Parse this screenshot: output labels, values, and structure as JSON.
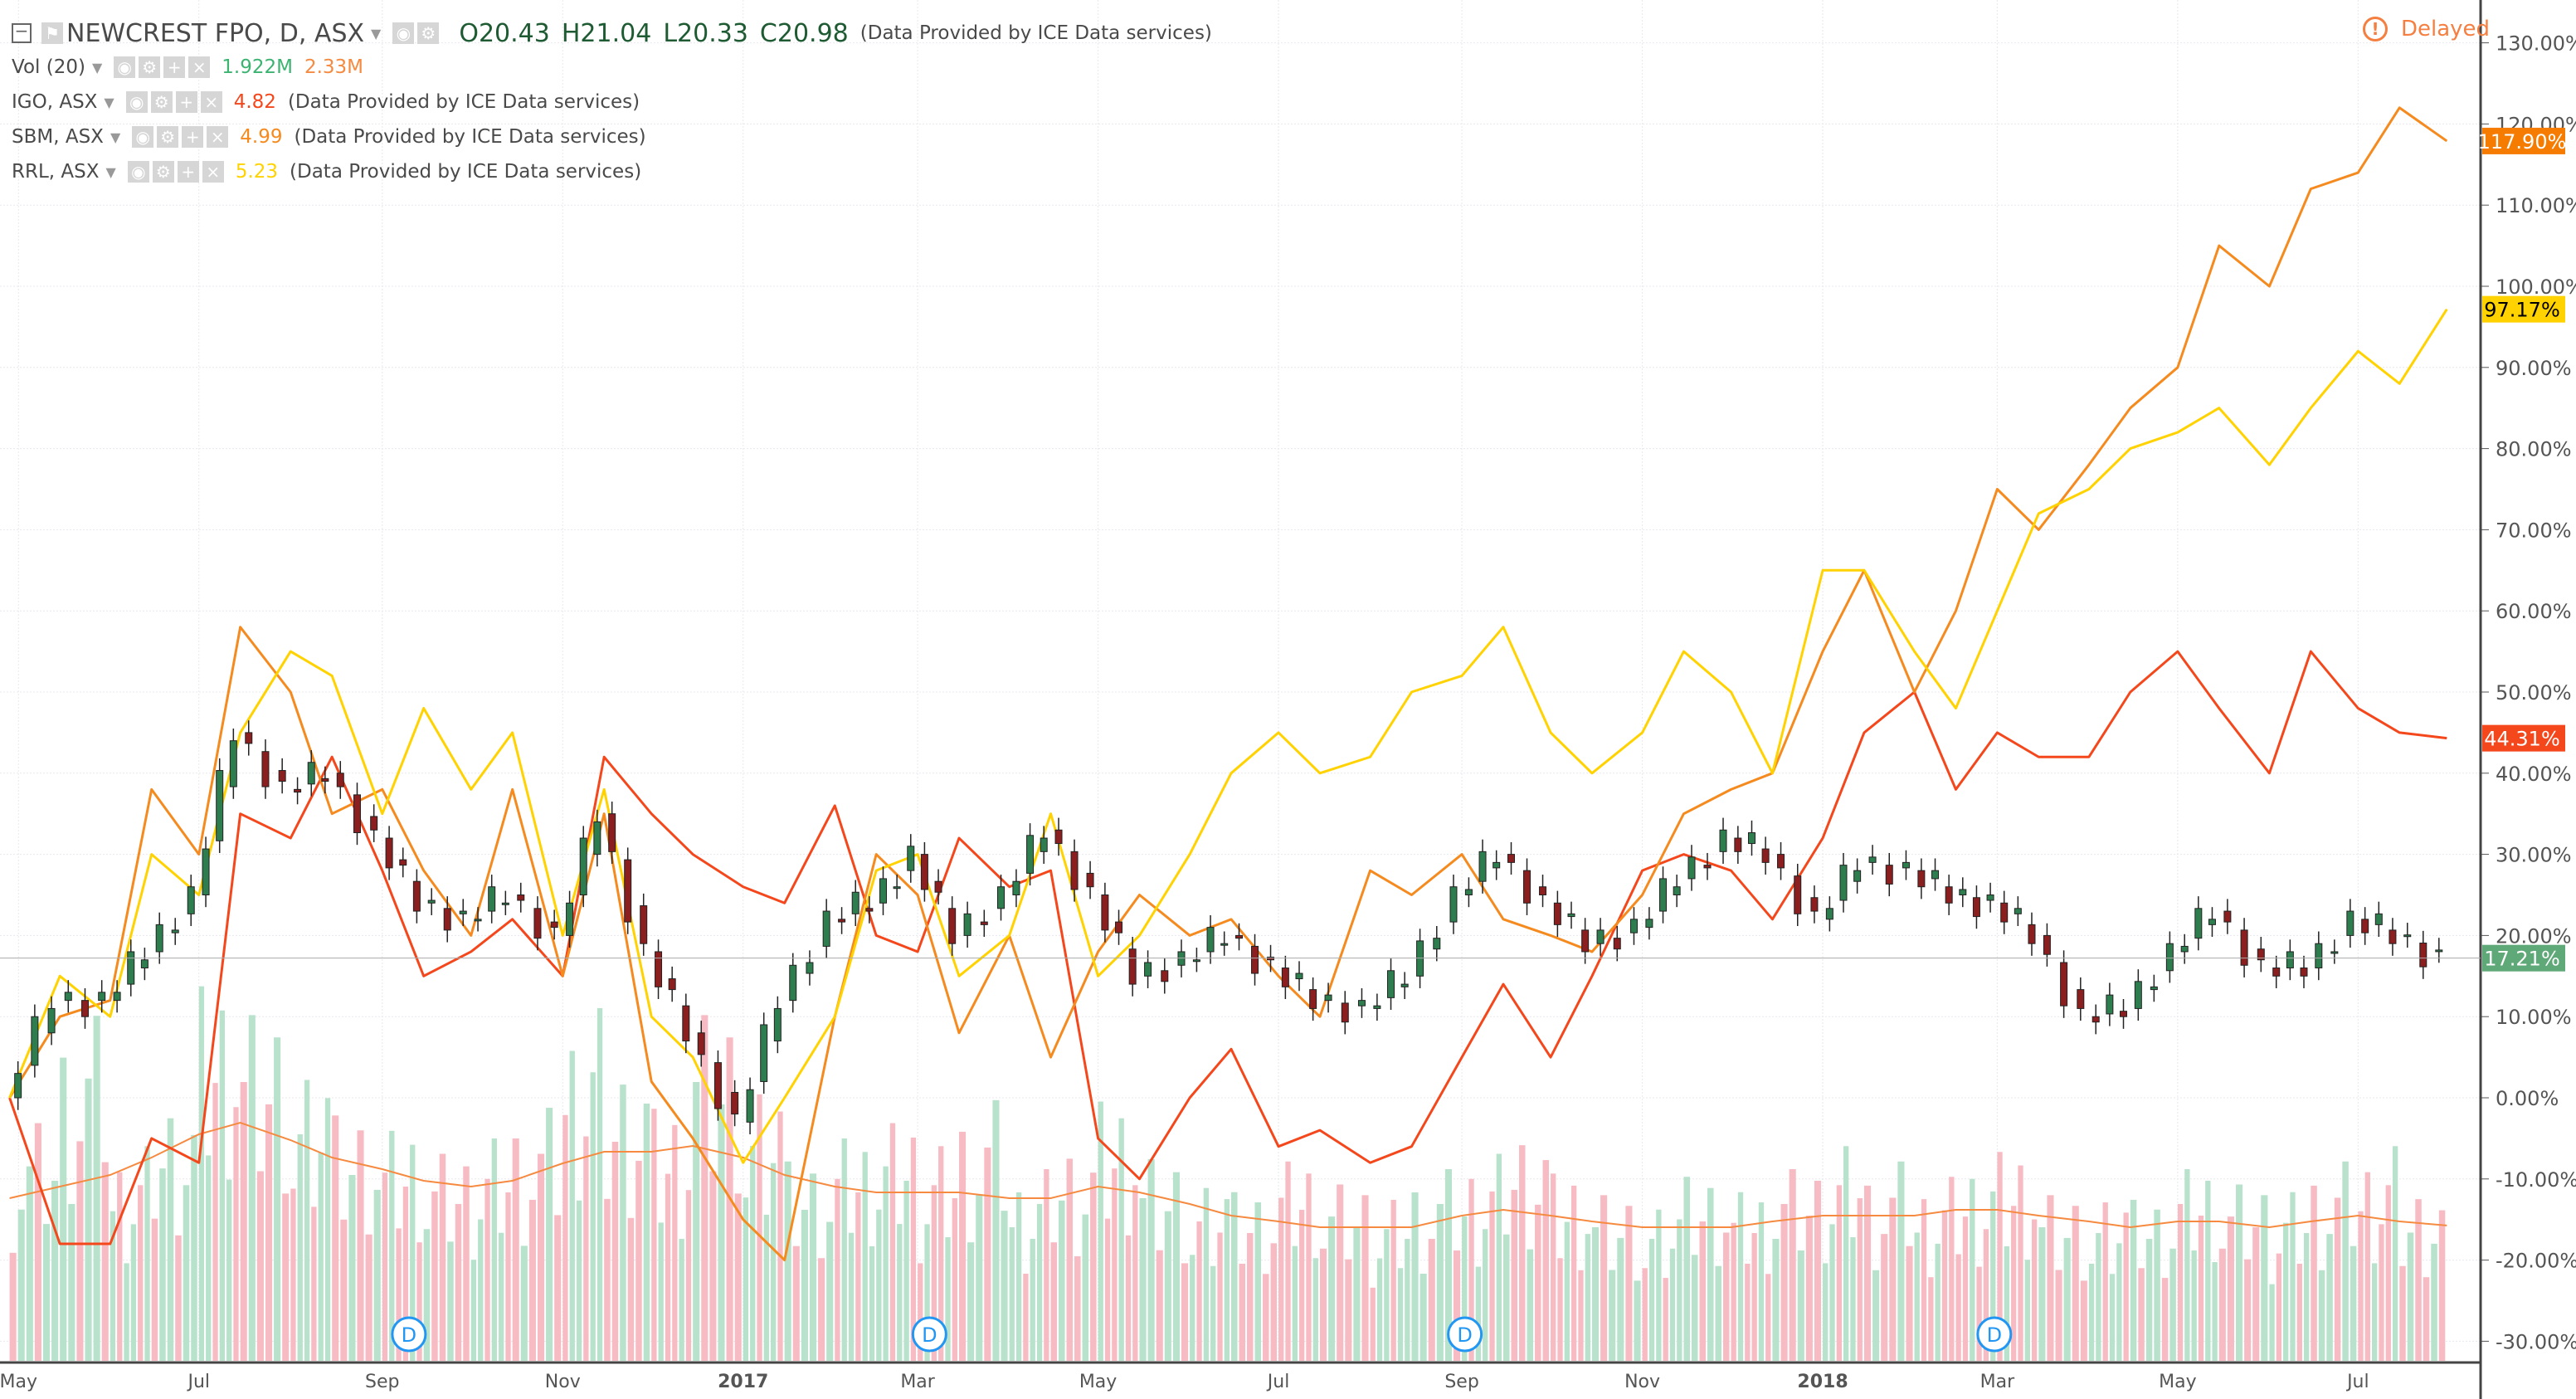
{
  "header": {
    "symbol": "NEWCREST FPO, D, ASX",
    "open": "O20.43",
    "high": "H21.04",
    "low": "L20.33",
    "close": "C20.98",
    "provider": "(Data Provided by ICE Data services)"
  },
  "volume": {
    "label": "Vol (20)",
    "value": "1.922M",
    "ma": "2.33M"
  },
  "compares": [
    {
      "label": "IGO, ASX",
      "value": "4.82",
      "provider": "(Data Provided by ICE Data services)",
      "color": "#f4471c"
    },
    {
      "label": "SBM, ASX",
      "value": "4.99",
      "provider": "(Data Provided by ICE Data services)",
      "color": "#f58a1f"
    },
    {
      "label": "RRL, ASX",
      "value": "5.23",
      "provider": "(Data Provided by ICE Data services)",
      "color": "#ffd200"
    }
  ],
  "status": {
    "delayed": "Delayed"
  },
  "colors": {
    "up": "#2e7d4f",
    "down": "#8b1e1e",
    "vol_up": "#b8e2cc",
    "vol_down": "#f7bcc3",
    "vol_ma": "#f58a40",
    "ncm_badge": "#5fa877"
  },
  "chart_data": {
    "type": "line",
    "yaxis": {
      "ticks": [
        "130.00%",
        "120.00%",
        "110.00%",
        "100.00%",
        "90.00%",
        "80.00%",
        "70.00%",
        "60.00%",
        "50.00%",
        "40.00%",
        "30.00%",
        "20.00%",
        "10.00%",
        "0.00%",
        "-10.00%",
        "-20.00%",
        "-30.00%"
      ],
      "tick_values": [
        130,
        120,
        110,
        100,
        90,
        80,
        70,
        60,
        50,
        40,
        30,
        20,
        10,
        0,
        -10,
        -20,
        -30
      ],
      "ylim": [
        -32,
        134
      ],
      "unit": "%"
    },
    "xaxis": {
      "ticks": [
        {
          "label": "May",
          "date": "2016-05-01"
        },
        {
          "label": "Jul",
          "date": "2016-07-01"
        },
        {
          "label": "Sep",
          "date": "2016-09-01"
        },
        {
          "label": "Nov",
          "date": "2016-11-01"
        },
        {
          "label": "2017",
          "date": "2017-01-01"
        },
        {
          "label": "Mar",
          "date": "2017-03-01"
        },
        {
          "label": "May",
          "date": "2017-05-01"
        },
        {
          "label": "Jul",
          "date": "2017-07-01"
        },
        {
          "label": "Sep",
          "date": "2017-09-01"
        },
        {
          "label": "Nov",
          "date": "2017-11-01"
        },
        {
          "label": "2018",
          "date": "2018-01-01"
        },
        {
          "label": "Mar",
          "date": "2018-03-01"
        },
        {
          "label": "May",
          "date": "2018-05-01"
        },
        {
          "label": "Jul",
          "date": "2018-07-01"
        }
      ],
      "range": [
        "2016-04-27",
        "2018-08-03"
      ]
    },
    "dates": [
      "2016-04-28",
      "2016-05-15",
      "2016-06-01",
      "2016-06-15",
      "2016-07-01",
      "2016-07-15",
      "2016-08-01",
      "2016-08-15",
      "2016-09-01",
      "2016-09-15",
      "2016-10-01",
      "2016-10-15",
      "2016-11-01",
      "2016-11-15",
      "2016-12-01",
      "2016-12-15",
      "2017-01-01",
      "2017-01-15",
      "2017-02-01",
      "2017-02-15",
      "2017-03-01",
      "2017-03-15",
      "2017-04-01",
      "2017-04-15",
      "2017-05-01",
      "2017-05-15",
      "2017-06-01",
      "2017-06-15",
      "2017-07-01",
      "2017-07-15",
      "2017-08-01",
      "2017-08-15",
      "2017-09-01",
      "2017-09-15",
      "2017-10-01",
      "2017-10-15",
      "2017-11-01",
      "2017-11-15",
      "2017-12-01",
      "2017-12-15",
      "2018-01-01",
      "2018-01-15",
      "2018-02-01",
      "2018-02-15",
      "2018-03-01",
      "2018-03-15",
      "2018-04-01",
      "2018-04-15",
      "2018-05-01",
      "2018-05-15",
      "2018-06-01",
      "2018-06-15",
      "2018-07-01",
      "2018-07-15",
      "2018-07-31"
    ],
    "series": [
      {
        "name": "NEWCREST FPO",
        "style": "candles",
        "last": "17.21%",
        "values": [
          0,
          12,
          12,
          18,
          25,
          45,
          38,
          40,
          32,
          24,
          22,
          25,
          20,
          35,
          18,
          8,
          -3,
          12,
          22,
          24,
          30,
          20,
          25,
          33,
          25,
          15,
          17,
          20,
          16,
          12,
          11,
          15,
          25,
          30,
          24,
          19,
          21,
          27,
          32,
          30,
          22,
          29,
          28,
          25,
          24,
          20,
          10,
          11,
          18,
          23,
          16,
          16,
          22,
          20,
          17.21
        ]
      },
      {
        "name": "IGO, ASX",
        "color": "#f4471c",
        "last": "44.31%",
        "values": [
          0,
          -18,
          -18,
          -5,
          -8,
          35,
          32,
          42,
          28,
          15,
          18,
          22,
          15,
          42,
          35,
          30,
          26,
          24,
          36,
          20,
          18,
          32,
          26,
          28,
          -5,
          -10,
          0,
          6,
          -6,
          -4,
          -8,
          -6,
          5,
          14,
          5,
          15,
          28,
          30,
          28,
          22,
          32,
          45,
          50,
          38,
          45,
          42,
          42,
          50,
          55,
          48,
          40,
          55,
          48,
          45,
          44.31
        ]
      },
      {
        "name": "SBM, ASX",
        "color": "#f58a1f",
        "last": "117.90%",
        "values": [
          0,
          10,
          12,
          38,
          30,
          58,
          50,
          35,
          38,
          28,
          20,
          38,
          15,
          35,
          2,
          -5,
          -15,
          -20,
          10,
          30,
          25,
          8,
          20,
          5,
          18,
          25,
          20,
          22,
          15,
          10,
          28,
          25,
          30,
          22,
          20,
          18,
          25,
          35,
          38,
          40,
          55,
          65,
          50,
          60,
          75,
          70,
          78,
          85,
          90,
          105,
          100,
          112,
          114,
          122,
          117.9
        ]
      },
      {
        "name": "RRL, ASX",
        "color": "#ffd200",
        "last": "97.17%",
        "values": [
          0,
          15,
          10,
          30,
          25,
          45,
          55,
          52,
          35,
          48,
          38,
          45,
          20,
          38,
          10,
          5,
          -8,
          0,
          10,
          28,
          30,
          15,
          20,
          35,
          15,
          20,
          30,
          40,
          45,
          40,
          42,
          50,
          52,
          58,
          45,
          40,
          45,
          55,
          50,
          40,
          65,
          65,
          55,
          48,
          60,
          72,
          75,
          80,
          82,
          85,
          78,
          85,
          92,
          88,
          97.17
        ]
      }
    ],
    "volume_values_m": [
      3.1,
      4.5,
      2.8,
      3.6,
      5.2,
      4.8,
      3.9,
      3.2,
      3.0,
      2.7,
      2.9,
      3.3,
      4.6,
      4.1,
      3.5,
      4.8,
      3.7,
      2.6,
      2.9,
      3.1,
      2.8,
      3.4,
      2.5,
      3.0,
      3.6,
      2.8,
      2.4,
      2.2,
      2.6,
      2.3,
      2.1,
      2.5,
      2.7,
      3.2,
      2.6,
      2.3,
      2.1,
      2.4,
      2.2,
      2.5,
      2.8,
      2.6,
      2.4,
      2.7,
      2.9,
      2.3,
      2.2,
      2.1,
      2.5,
      2.3,
      2.2,
      2.6,
      2.8,
      2.4,
      1.92
    ],
    "volume_ma_m": [
      2.8,
      3.0,
      3.2,
      3.5,
      3.9,
      4.1,
      3.8,
      3.5,
      3.3,
      3.1,
      3.0,
      3.1,
      3.4,
      3.6,
      3.6,
      3.7,
      3.5,
      3.2,
      3.0,
      2.9,
      2.9,
      2.9,
      2.8,
      2.8,
      3.0,
      2.9,
      2.7,
      2.5,
      2.4,
      2.3,
      2.3,
      2.3,
      2.5,
      2.6,
      2.5,
      2.4,
      2.3,
      2.3,
      2.3,
      2.4,
      2.5,
      2.5,
      2.5,
      2.6,
      2.6,
      2.5,
      2.4,
      2.3,
      2.4,
      2.4,
      2.3,
      2.4,
      2.5,
      2.4,
      2.33
    ],
    "dividends": [
      {
        "label": "D",
        "date": "2016-09-10"
      },
      {
        "label": "D",
        "date": "2017-03-05"
      },
      {
        "label": "D",
        "date": "2017-09-02"
      },
      {
        "label": "D",
        "date": "2018-02-28"
      }
    ]
  }
}
